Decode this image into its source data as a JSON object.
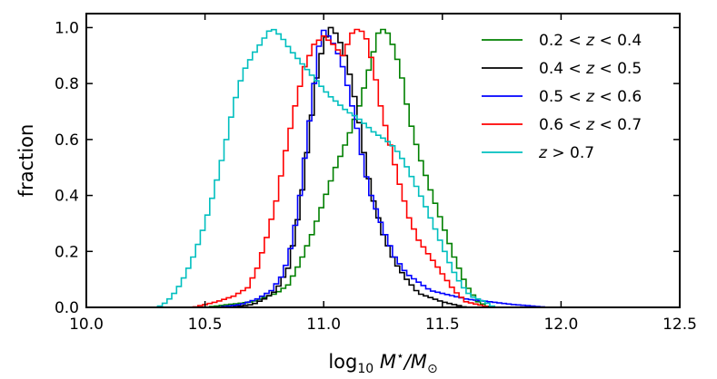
{
  "chart_data": {
    "type": "line",
    "style": "step-histogram",
    "xlabel": {
      "base": "log",
      "sub": "10",
      "mid": " M",
      "sup": "⋆",
      "tail": "/M",
      "tail_sub": "⊙"
    },
    "ylabel": "fraction",
    "xlim": [
      10.0,
      12.5
    ],
    "ylim": [
      0.0,
      1.05
    ],
    "x_ticks": [
      10.0,
      10.5,
      11.0,
      11.5,
      12.0,
      12.5
    ],
    "x_tick_labels": [
      "10.0",
      "10.5",
      "11.0",
      "11.5",
      "12.0",
      "12.5"
    ],
    "y_ticks": [
      0.0,
      0.2,
      0.4,
      0.6,
      0.8,
      1.0
    ],
    "y_tick_labels": [
      "0.0",
      "0.2",
      "0.4",
      "0.6",
      "0.8",
      "1.0"
    ],
    "grid": false,
    "legend_position": "top-right",
    "bin_width": 0.02,
    "series": [
      {
        "name_parts": [
          "0.2",
          "<",
          "z",
          "<",
          "0.4"
        ],
        "color": "#008000",
        "points": [
          [
            10.5,
            0.0
          ],
          [
            10.6,
            0.01
          ],
          [
            10.7,
            0.02
          ],
          [
            10.8,
            0.05
          ],
          [
            10.85,
            0.08
          ],
          [
            10.9,
            0.16
          ],
          [
            10.95,
            0.26
          ],
          [
            11.0,
            0.38
          ],
          [
            11.05,
            0.5
          ],
          [
            11.1,
            0.6
          ],
          [
            11.15,
            0.72
          ],
          [
            11.2,
            0.88
          ],
          [
            11.23,
            0.98
          ],
          [
            11.26,
            1.0
          ],
          [
            11.3,
            0.92
          ],
          [
            11.33,
            0.82
          ],
          [
            11.36,
            0.68
          ],
          [
            11.4,
            0.55
          ],
          [
            11.45,
            0.42
          ],
          [
            11.5,
            0.3
          ],
          [
            11.55,
            0.18
          ],
          [
            11.6,
            0.08
          ],
          [
            11.65,
            0.02
          ],
          [
            11.7,
            0.0
          ]
        ]
      },
      {
        "name_parts": [
          "0.4",
          "<",
          "z",
          "<",
          "0.5"
        ],
        "color": "#000000",
        "points": [
          [
            10.6,
            0.0
          ],
          [
            10.7,
            0.01
          ],
          [
            10.75,
            0.03
          ],
          [
            10.8,
            0.06
          ],
          [
            10.85,
            0.14
          ],
          [
            10.88,
            0.26
          ],
          [
            10.91,
            0.42
          ],
          [
            10.94,
            0.62
          ],
          [
            10.97,
            0.82
          ],
          [
            11.0,
            0.95
          ],
          [
            11.03,
            1.0
          ],
          [
            11.06,
            0.97
          ],
          [
            11.09,
            0.9
          ],
          [
            11.12,
            0.8
          ],
          [
            11.15,
            0.66
          ],
          [
            11.18,
            0.5
          ],
          [
            11.21,
            0.38
          ],
          [
            11.25,
            0.26
          ],
          [
            11.3,
            0.16
          ],
          [
            11.35,
            0.1
          ],
          [
            11.4,
            0.05
          ],
          [
            11.5,
            0.02
          ],
          [
            11.6,
            0.0
          ]
        ]
      },
      {
        "name_parts": [
          "0.5",
          "<",
          "z",
          "<",
          "0.6"
        ],
        "color": "#0000ff",
        "points": [
          [
            10.55,
            0.0
          ],
          [
            10.65,
            0.01
          ],
          [
            10.72,
            0.03
          ],
          [
            10.78,
            0.06
          ],
          [
            10.83,
            0.12
          ],
          [
            10.87,
            0.24
          ],
          [
            10.9,
            0.4
          ],
          [
            10.93,
            0.6
          ],
          [
            10.96,
            0.8
          ],
          [
            10.99,
            1.0
          ],
          [
            11.02,
            0.97
          ],
          [
            11.05,
            0.93
          ],
          [
            11.08,
            0.86
          ],
          [
            11.11,
            0.76
          ],
          [
            11.14,
            0.64
          ],
          [
            11.17,
            0.5
          ],
          [
            11.2,
            0.4
          ],
          [
            11.25,
            0.28
          ],
          [
            11.3,
            0.18
          ],
          [
            11.35,
            0.12
          ],
          [
            11.45,
            0.06
          ],
          [
            11.6,
            0.03
          ],
          [
            11.8,
            0.01
          ],
          [
            11.95,
            0.0
          ]
        ]
      },
      {
        "name_parts": [
          "0.6",
          "<",
          "z",
          "<",
          "0.7"
        ],
        "color": "#ff0000",
        "points": [
          [
            10.45,
            0.0
          ],
          [
            10.55,
            0.02
          ],
          [
            10.62,
            0.04
          ],
          [
            10.68,
            0.07
          ],
          [
            10.72,
            0.14
          ],
          [
            10.76,
            0.25
          ],
          [
            10.8,
            0.38
          ],
          [
            10.84,
            0.56
          ],
          [
            10.88,
            0.72
          ],
          [
            10.92,
            0.86
          ],
          [
            10.96,
            0.94
          ],
          [
            11.0,
            0.97
          ],
          [
            11.04,
            0.94
          ],
          [
            11.08,
            0.9
          ],
          [
            11.12,
            0.98
          ],
          [
            11.15,
            1.0
          ],
          [
            11.18,
            0.96
          ],
          [
            11.21,
            0.86
          ],
          [
            11.24,
            0.72
          ],
          [
            11.28,
            0.58
          ],
          [
            11.32,
            0.44
          ],
          [
            11.36,
            0.32
          ],
          [
            11.4,
            0.24
          ],
          [
            11.45,
            0.18
          ],
          [
            11.5,
            0.12
          ],
          [
            11.55,
            0.06
          ],
          [
            11.6,
            0.02
          ],
          [
            11.7,
            0.0
          ]
        ]
      },
      {
        "name_parts": [
          "",
          "",
          "z",
          ">",
          "0.7"
        ],
        "color": "#00bfbf",
        "points": [
          [
            10.3,
            0.0
          ],
          [
            10.34,
            0.02
          ],
          [
            10.38,
            0.06
          ],
          [
            10.42,
            0.12
          ],
          [
            10.46,
            0.2
          ],
          [
            10.5,
            0.3
          ],
          [
            10.54,
            0.42
          ],
          [
            10.58,
            0.56
          ],
          [
            10.62,
            0.72
          ],
          [
            10.66,
            0.84
          ],
          [
            10.7,
            0.9
          ],
          [
            10.74,
            0.95
          ],
          [
            10.78,
            1.0
          ],
          [
            10.82,
            0.97
          ],
          [
            10.86,
            0.92
          ],
          [
            10.9,
            0.88
          ],
          [
            10.94,
            0.84
          ],
          [
            10.98,
            0.8
          ],
          [
            11.02,
            0.76
          ],
          [
            11.06,
            0.73
          ],
          [
            11.1,
            0.7
          ],
          [
            11.14,
            0.68
          ],
          [
            11.18,
            0.65
          ],
          [
            11.22,
            0.62
          ],
          [
            11.26,
            0.6
          ],
          [
            11.3,
            0.57
          ],
          [
            11.34,
            0.52
          ],
          [
            11.38,
            0.45
          ],
          [
            11.42,
            0.38
          ],
          [
            11.46,
            0.3
          ],
          [
            11.5,
            0.22
          ],
          [
            11.54,
            0.14
          ],
          [
            11.58,
            0.08
          ],
          [
            11.62,
            0.04
          ],
          [
            11.68,
            0.02
          ],
          [
            11.72,
            0.0
          ]
        ]
      }
    ]
  }
}
